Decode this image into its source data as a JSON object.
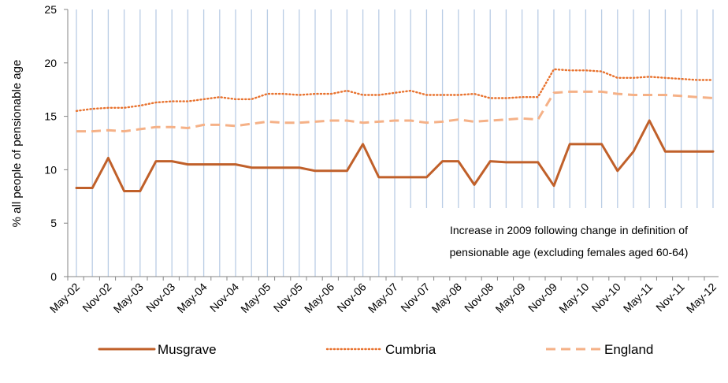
{
  "chart_data": {
    "type": "line",
    "ylabel": "% all people of pensionable age",
    "ylim": [
      0,
      25
    ],
    "yticks": [
      0,
      5,
      10,
      15,
      20,
      25
    ],
    "x_tick_labels": [
      "May-02",
      "Nov-02",
      "May-03",
      "Nov-03",
      "May-04",
      "Nov-04",
      "May-05",
      "Nov-05",
      "May-06",
      "Nov-06",
      "May-07",
      "Nov-07",
      "May-08",
      "Nov-08",
      "May-09",
      "Nov-09",
      "May-10",
      "Nov-10",
      "May-11",
      "Nov-11",
      "May-12"
    ],
    "x_period_count": 41,
    "annotation_lines": [
      "Increase in 2009 following change in definition of",
      "pensionable age (excluding females aged 60-64)"
    ],
    "legend_position": "bottom",
    "vertical_gridlines": true,
    "series": [
      {
        "name": "Musgrave",
        "color": "#C0602A",
        "style": "solid",
        "values": [
          8.3,
          8.3,
          11.1,
          8.0,
          8.0,
          10.8,
          10.8,
          10.5,
          10.5,
          10.5,
          10.5,
          10.2,
          10.2,
          10.2,
          10.2,
          9.9,
          9.9,
          9.9,
          12.4,
          9.3,
          9.3,
          9.3,
          9.3,
          10.8,
          10.8,
          8.6,
          10.8,
          10.7,
          10.7,
          10.7,
          8.5,
          12.4,
          12.4,
          12.4,
          9.9,
          11.7,
          14.6,
          11.7,
          11.7,
          11.7,
          11.7
        ]
      },
      {
        "name": "Cumbria",
        "color": "#E8722E",
        "style": "dotted",
        "values": [
          15.5,
          15.7,
          15.8,
          15.8,
          16.0,
          16.3,
          16.4,
          16.4,
          16.6,
          16.8,
          16.6,
          16.6,
          17.1,
          17.1,
          17.0,
          17.1,
          17.1,
          17.4,
          17.0,
          17.0,
          17.2,
          17.4,
          17.0,
          17.0,
          17.0,
          17.1,
          16.7,
          16.7,
          16.8,
          16.8,
          19.4,
          19.3,
          19.3,
          19.2,
          18.6,
          18.6,
          18.7,
          18.6,
          18.5,
          18.4,
          18.4
        ]
      },
      {
        "name": "England",
        "color": "#F5B187",
        "style": "dashed",
        "values": [
          13.6,
          13.6,
          13.7,
          13.6,
          13.8,
          14.0,
          14.0,
          13.9,
          14.2,
          14.2,
          14.1,
          14.3,
          14.5,
          14.4,
          14.4,
          14.5,
          14.6,
          14.6,
          14.4,
          14.5,
          14.6,
          14.6,
          14.4,
          14.5,
          14.7,
          14.5,
          14.6,
          14.7,
          14.8,
          14.7,
          17.2,
          17.3,
          17.3,
          17.3,
          17.1,
          17.0,
          17.0,
          17.0,
          16.9,
          16.8,
          16.7
        ]
      }
    ]
  }
}
